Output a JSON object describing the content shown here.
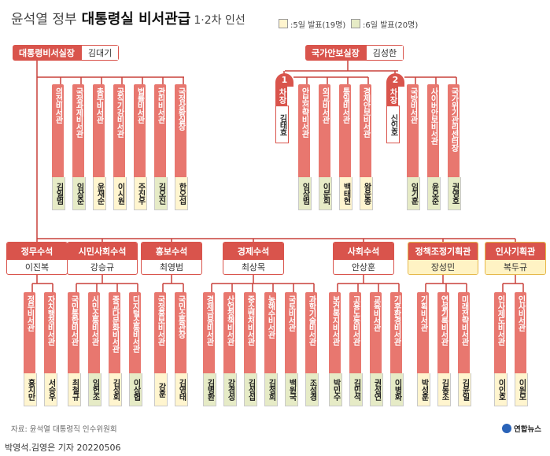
{
  "title": {
    "prefix": "윤석열 정부",
    "main": "대통령실 비서관급",
    "suffix": "1·2차 인선"
  },
  "legend": [
    {
      "label": ":5일 발표(19명)",
      "color": "#fff5cf"
    },
    {
      "label": ":6일 발표(20명)",
      "color": "#e6ebc6"
    }
  ],
  "chief": {
    "title": "대통령비서실장",
    "name": "김대기"
  },
  "nsa": {
    "title": "국가안보실장",
    "name": "김성한"
  },
  "vice": [
    {
      "num": "1",
      "rank": "차장",
      "name": "김태효"
    },
    {
      "num": "2",
      "rank": "차장",
      "name": "신인호"
    }
  ],
  "chief_secretaries": [
    {
      "title": "의전비서관",
      "name": "김일범",
      "day": "d6"
    },
    {
      "title": "국정과제비서관",
      "name": "임상준",
      "day": "d6"
    },
    {
      "title": "총무비서관",
      "name": "윤재순",
      "day": "d5"
    },
    {
      "title": "공직기강비서관",
      "name": "이시원",
      "day": "d5"
    },
    {
      "title": "법률비서관",
      "name": "주진우",
      "day": "d5"
    },
    {
      "title": "관리비서관",
      "name": "김오진",
      "day": "d6"
    },
    {
      "title": "국정상황실장",
      "name": "한오섭",
      "day": "d5"
    }
  ],
  "vice1_secretaries": [
    {
      "title": "안보전략비서관",
      "name": "임상범",
      "day": "d6"
    },
    {
      "title": "외교비서관",
      "name": "이문희",
      "day": "d6"
    },
    {
      "title": "통일비서관",
      "name": "백태현",
      "day": "d5"
    },
    {
      "title": "경제안보비서관",
      "name": "왕윤종",
      "day": "d5"
    }
  ],
  "vice2_secretaries": [
    {
      "title": "국방비서관",
      "name": "임기훈",
      "day": "d6"
    },
    {
      "title": "사이버안보비서관",
      "name": "윤오준",
      "day": "d6"
    },
    {
      "title": "국가위기관리센터장",
      "name": "권영호",
      "day": "d6"
    }
  ],
  "senior": [
    {
      "title": "정무수석",
      "name": "이진복",
      "gold": false,
      "secs": [
        {
          "title": "정무비서관",
          "name": "홍지만",
          "day": "d5"
        },
        {
          "title": "자치행정비서관",
          "name": "서승우",
          "day": "d5"
        }
      ]
    },
    {
      "title": "시민사회수석",
      "name": "강승규",
      "gold": false,
      "secs": [
        {
          "title": "국민통합비서관",
          "name": "최철규",
          "day": "d5"
        },
        {
          "title": "시민소통비서관",
          "name": "임헌조",
          "day": "d6"
        },
        {
          "title": "종교다문화비서관",
          "name": "김성회",
          "day": "d5"
        },
        {
          "title": "디지털소통비서관",
          "name": "이상협",
          "day": "d6"
        }
      ]
    },
    {
      "title": "홍보수석",
      "name": "최영범",
      "gold": false,
      "secs": [
        {
          "title": "국정홍보비서관",
          "name": "강훈",
          "day": "d5"
        },
        {
          "title": "국민소통관장",
          "name": "김영태",
          "day": "d5"
        }
      ]
    },
    {
      "title": "경제수석",
      "name": "최상목",
      "gold": false,
      "secs": [
        {
          "title": "경제금융비서관",
          "name": "김병환",
          "day": "d6"
        },
        {
          "title": "산업정책비서관",
          "name": "강경성",
          "day": "d6"
        },
        {
          "title": "중소벤처비서관",
          "name": "김성섭",
          "day": "d6"
        },
        {
          "title": "농해수비서관",
          "name": "김정희",
          "day": "d6"
        },
        {
          "title": "국토비서관",
          "name": "백원국",
          "day": "d6"
        },
        {
          "title": "과학기술비서관",
          "name": "조성경",
          "day": "d6"
        }
      ]
    },
    {
      "title": "사회수석",
      "name": "안상훈",
      "gold": false,
      "secs": [
        {
          "title": "보건복지비서관",
          "name": "박민수",
          "day": "d6"
        },
        {
          "title": "고용노동비서관",
          "name": "김민석",
          "day": "d6"
        },
        {
          "title": "교육비서관",
          "name": "권성연",
          "day": "d6"
        },
        {
          "title": "기후환경비서관",
          "name": "이병화",
          "day": "d6"
        }
      ]
    },
    {
      "title": "정책조정기획관",
      "name": "장성민",
      "gold": true,
      "secs": [
        {
          "title": "기획비서관",
          "name": "박성훈",
          "day": "d5"
        },
        {
          "title": "연설기록비서관",
          "name": "김동조",
          "day": "d5"
        },
        {
          "title": "미래전략비서관",
          "name": "김윤일",
          "day": "d5"
        }
      ]
    },
    {
      "title": "인사기획관",
      "name": "복두규",
      "gold": true,
      "secs": [
        {
          "title": "인사제도비서관",
          "name": "이인호",
          "day": "d5"
        },
        {
          "title": "인사비서관",
          "name": "이원모",
          "day": "d5"
        }
      ]
    }
  ],
  "source": "자료: 윤석열 대통령직 인수위원회",
  "credit": "박영석.김영은 기자 20220506",
  "logo": "연합뉴스"
}
